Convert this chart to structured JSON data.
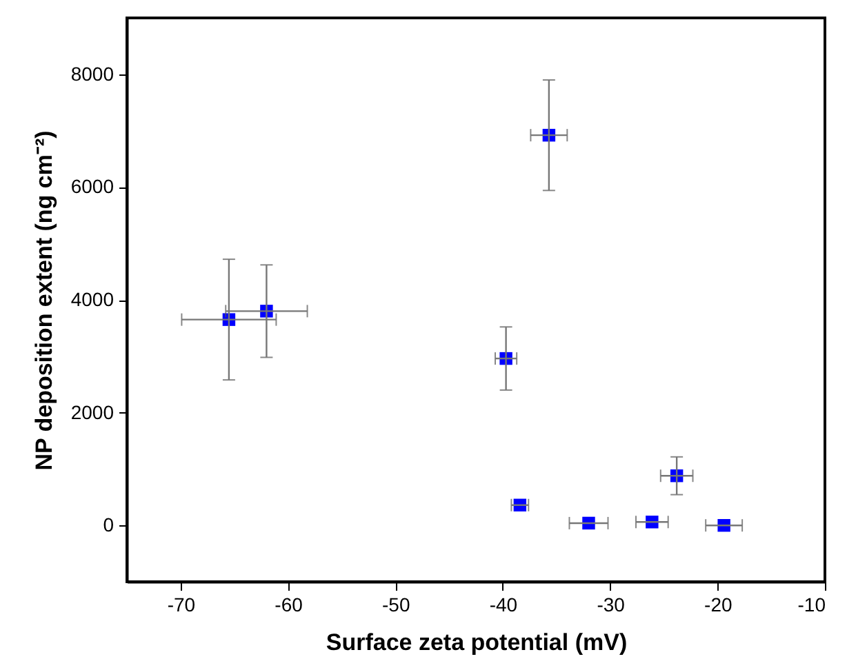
{
  "chart_data": {
    "type": "scatter",
    "xlabel": "Surface zeta potential (mV)",
    "ylabel": "NP deposition extent (ng cm⁻²)",
    "x": [
      -65.5,
      -62.0,
      -39.7,
      -38.4,
      -35.7,
      -32.0,
      -26.1,
      -23.8,
      -19.4
    ],
    "series": [
      {
        "color": "#0000ff",
        "values": [
          3650,
          3800,
          2960,
          360,
          6920,
          40,
          60,
          880,
          0
        ],
        "errors": [
          1070,
          820,
          560,
          null,
          980,
          null,
          null,
          335,
          null
        ],
        "xerrors": [
          4.4,
          3.8,
          1.0,
          0.8,
          1.7,
          1.8,
          1.5,
          1.5,
          1.7
        ]
      }
    ],
    "xlim": [
      -75,
      -10
    ],
    "xticks": [
      -70,
      -60,
      -50,
      -40,
      -30,
      -20,
      -10
    ],
    "ylim": [
      -1000,
      9000
    ],
    "yticks": [
      0,
      2000,
      4000,
      6000,
      8000
    ],
    "marker": "square",
    "grid": false
  }
}
